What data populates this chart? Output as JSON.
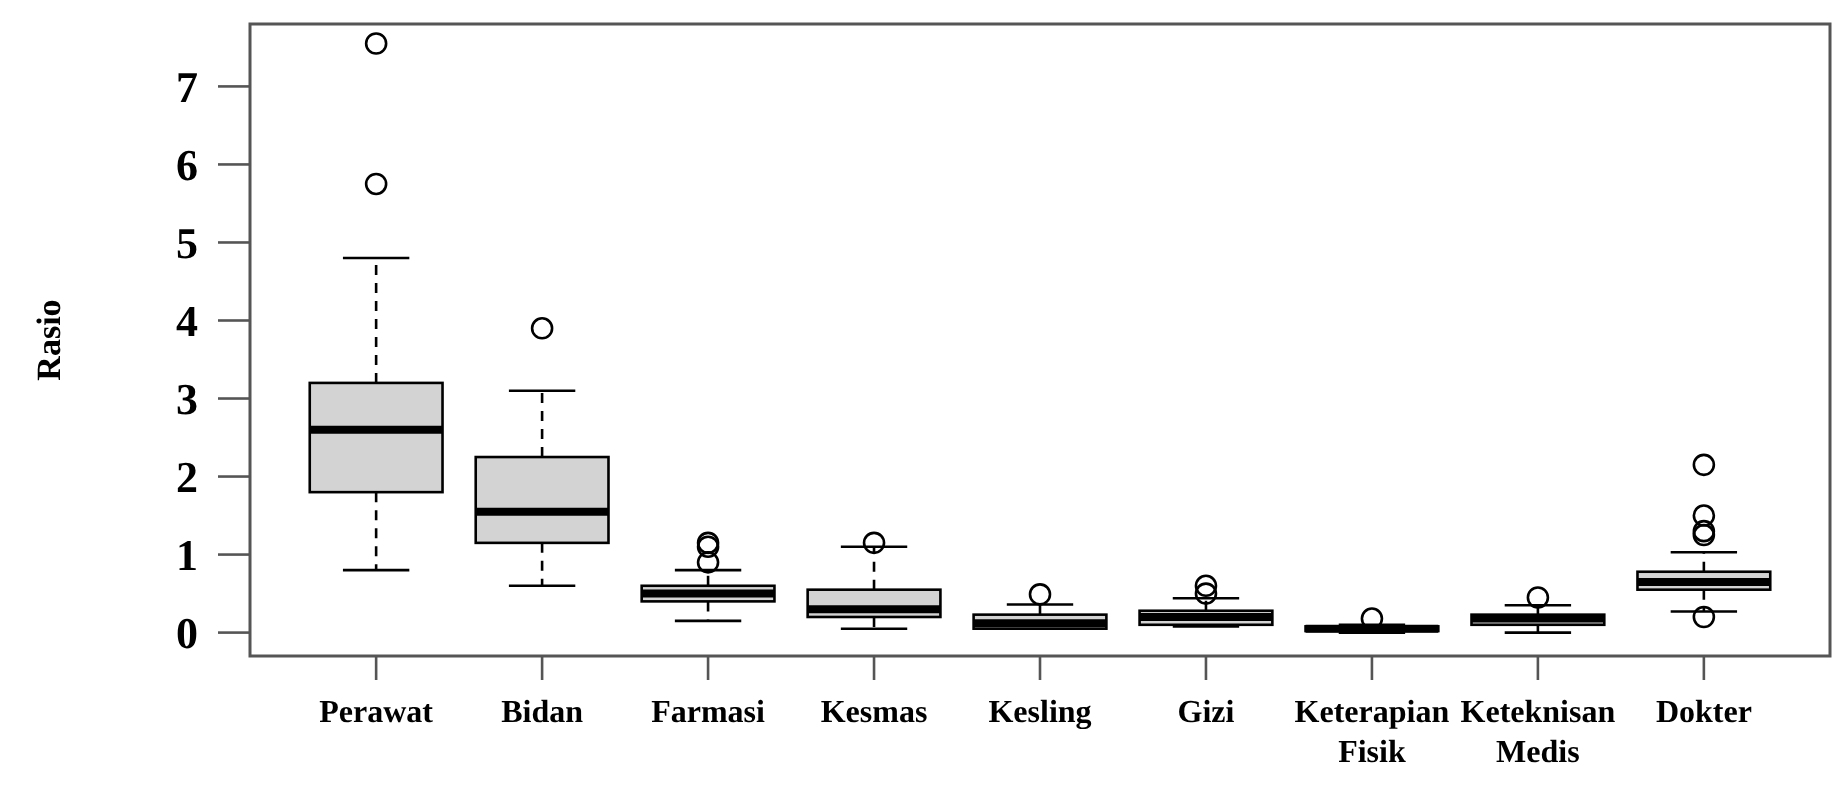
{
  "chart_data": {
    "type": "box",
    "ylabel": "Rasio",
    "color": "#d3d3d3",
    "categories": [
      "Perawat",
      "Bidan",
      "Farmasi",
      "Kesmas",
      "Kesling",
      "Gizi",
      "Keterapian Fisik",
      "Keteknisan Medis",
      "Dokter"
    ],
    "ylim": [
      -0.3,
      7.8
    ],
    "yticks": [
      0,
      1,
      2,
      3,
      4,
      5,
      6,
      7
    ],
    "grid": false,
    "boxes": [
      {
        "low": 0.8,
        "q1": 1.8,
        "median": 2.6,
        "q3": 3.2,
        "high": 4.8,
        "outliers": [
          5.75,
          7.55
        ]
      },
      {
        "low": 0.6,
        "q1": 1.15,
        "median": 1.55,
        "q3": 2.25,
        "high": 3.1,
        "outliers": [
          3.9
        ]
      },
      {
        "low": 0.15,
        "q1": 0.4,
        "median": 0.5,
        "q3": 0.6,
        "high": 0.8,
        "outliers": [
          0.9,
          1.1,
          1.15
        ]
      },
      {
        "low": 0.05,
        "q1": 0.2,
        "median": 0.3,
        "q3": 0.55,
        "high": 1.1,
        "outliers": [
          1.15
        ]
      },
      {
        "low": 0.05,
        "q1": 0.05,
        "median": 0.12,
        "q3": 0.23,
        "high": 0.36,
        "outliers": [
          0.49
        ]
      },
      {
        "low": 0.08,
        "q1": 0.1,
        "median": 0.2,
        "q3": 0.28,
        "high": 0.44,
        "outliers": [
          0.5,
          0.6
        ]
      },
      {
        "low": 0.0,
        "q1": 0.02,
        "median": 0.05,
        "q3": 0.08,
        "high": 0.1,
        "outliers": [
          0.18
        ]
      },
      {
        "low": 0.0,
        "q1": 0.1,
        "median": 0.18,
        "q3": 0.23,
        "high": 0.35,
        "outliers": [
          0.45
        ]
      },
      {
        "low": 0.27,
        "q1": 0.55,
        "median": 0.65,
        "q3": 0.78,
        "high": 1.03,
        "outliers": [
          0.2,
          1.25,
          1.3,
          1.5,
          2.15
        ]
      }
    ]
  }
}
